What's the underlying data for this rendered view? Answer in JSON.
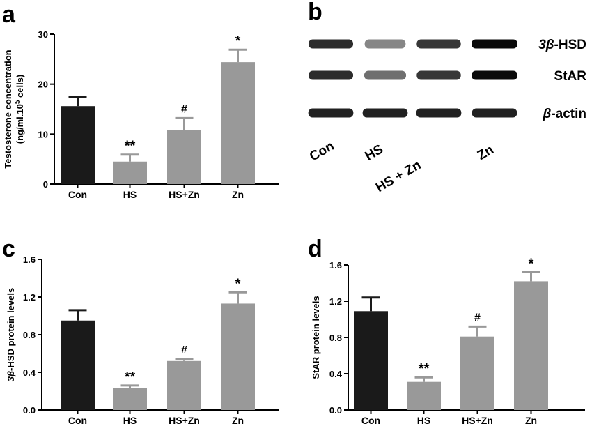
{
  "chart_data": [
    {
      "panel": "a",
      "type": "bar",
      "categories": [
        "Con",
        "HS",
        "HS+Zn",
        "Zn"
      ],
      "values": [
        15.6,
        4.5,
        10.8,
        24.4
      ],
      "errors": [
        1.8,
        1.4,
        2.4,
        2.5
      ],
      "colors": [
        "#1a1a1a",
        "#999999",
        "#999999",
        "#999999"
      ],
      "annotations": [
        "",
        "**",
        "#",
        "*"
      ],
      "ylabel_line1": "Testosterone concentration",
      "ylabel_line2_pre": "(ng/ml.10",
      "ylabel_line2_sup": "5",
      "ylabel_line2_post": " cells)",
      "yticks": [
        "0",
        "10",
        "20",
        "30"
      ],
      "ylim": [
        0,
        30
      ]
    },
    {
      "panel": "c",
      "type": "bar",
      "categories": [
        "Con",
        "HS",
        "HS+Zn",
        "Zn"
      ],
      "values": [
        0.95,
        0.23,
        0.52,
        1.13
      ],
      "errors": [
        0.11,
        0.03,
        0.02,
        0.12
      ],
      "colors": [
        "#1a1a1a",
        "#999999",
        "#999999",
        "#999999"
      ],
      "annotations": [
        "",
        "**",
        "#",
        "*"
      ],
      "ylabel_italic": "3β",
      "ylabel_rest": "-HSD protein levels",
      "yticks": [
        "0.0",
        "0.4",
        "0.8",
        "1.2",
        "1.6"
      ],
      "ylim": [
        0,
        1.6
      ]
    },
    {
      "panel": "d",
      "type": "bar",
      "categories": [
        "Con",
        "HS",
        "HS+Zn",
        "Zn"
      ],
      "values": [
        1.09,
        0.31,
        0.81,
        1.42
      ],
      "errors": [
        0.15,
        0.05,
        0.11,
        0.1
      ],
      "colors": [
        "#1a1a1a",
        "#999999",
        "#999999",
        "#999999"
      ],
      "annotations": [
        "",
        "**",
        "#",
        "*"
      ],
      "ylabel": "StAR protein levels",
      "yticks": [
        "0.0",
        "0.4",
        "0.8",
        "1.2",
        "1.6"
      ],
      "ylim": [
        0,
        1.6
      ]
    }
  ],
  "panels": {
    "a": "a",
    "b": "b",
    "c": "c",
    "d": "d"
  },
  "blot": {
    "rows": [
      {
        "italic": "3β",
        "rest": "-HSD",
        "intensity": [
          0.85,
          0.45,
          0.8,
          1.0
        ]
      },
      {
        "italic": "",
        "rest": "StAR",
        "intensity": [
          0.85,
          0.55,
          0.8,
          1.0
        ]
      },
      {
        "italic": "β",
        "rest": "-actin",
        "intensity": [
          0.9,
          0.9,
          0.9,
          0.9
        ]
      }
    ],
    "lanes": [
      "Con",
      "HS",
      "HS + Zn",
      "Zn"
    ]
  }
}
